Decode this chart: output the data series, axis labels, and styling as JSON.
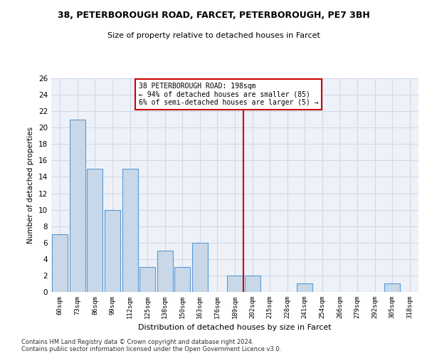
{
  "title1": "38, PETERBOROUGH ROAD, FARCET, PETERBOROUGH, PE7 3BH",
  "title2": "Size of property relative to detached houses in Farcet",
  "xlabel": "Distribution of detached houses by size in Farcet",
  "ylabel": "Number of detached properties",
  "categories": [
    "60sqm",
    "73sqm",
    "86sqm",
    "99sqm",
    "112sqm",
    "125sqm",
    "138sqm",
    "150sqm",
    "163sqm",
    "176sqm",
    "189sqm",
    "202sqm",
    "215sqm",
    "228sqm",
    "241sqm",
    "254sqm",
    "266sqm",
    "279sqm",
    "292sqm",
    "305sqm",
    "318sqm"
  ],
  "values": [
    7,
    21,
    15,
    10,
    15,
    3,
    5,
    3,
    6,
    0,
    2,
    2,
    0,
    0,
    1,
    0,
    0,
    0,
    0,
    1,
    0
  ],
  "bar_color": "#c8d8e8",
  "bar_edge_color": "#5a9ad4",
  "vline_index": 10.5,
  "highlight_label": "38 PETERBOROUGH ROAD: 198sqm\n← 94% of detached houses are smaller (85)\n6% of semi-detached houses are larger (5) →",
  "vline_color": "#cc0000",
  "annotation_box_edge_color": "#cc0000",
  "ylim": [
    0,
    26
  ],
  "yticks": [
    0,
    2,
    4,
    6,
    8,
    10,
    12,
    14,
    16,
    18,
    20,
    22,
    24,
    26
  ],
  "grid_color": "#d0d8e8",
  "background_color": "#eef2f8",
  "footer": "Contains HM Land Registry data © Crown copyright and database right 2024.\nContains public sector information licensed under the Open Government Licence v3.0."
}
